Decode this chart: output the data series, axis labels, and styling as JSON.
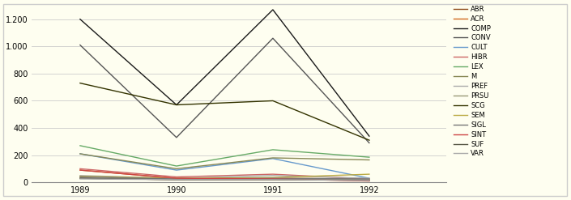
{
  "years": [
    1989,
    1990,
    1991,
    1992
  ],
  "series": {
    "ABR": [
      30,
      20,
      20,
      15
    ],
    "ACR": [
      90,
      30,
      30,
      25
    ],
    "COMP": [
      1200,
      570,
      1270,
      340
    ],
    "CONV": [
      1010,
      330,
      1060,
      290
    ],
    "CULT": [
      210,
      90,
      175,
      30
    ],
    "HIBR": [
      100,
      40,
      60,
      25
    ],
    "LEX": [
      270,
      120,
      240,
      185
    ],
    "M": [
      210,
      100,
      180,
      165
    ],
    "PREF": [
      50,
      30,
      50,
      30
    ],
    "PRSU": [
      30,
      20,
      25,
      20
    ],
    "SCG": [
      730,
      570,
      600,
      310
    ],
    "SEM": [
      45,
      30,
      35,
      60
    ],
    "SIGL": [
      40,
      25,
      30,
      25
    ],
    "SINT": [
      90,
      30,
      25,
      10
    ],
    "SUF": [
      30,
      20,
      20,
      15
    ],
    "VAR": [
      25,
      20,
      20,
      15
    ]
  },
  "colors": {
    "ABR": "#8B4513",
    "ACR": "#D2691E",
    "COMP": "#1a1a1a",
    "CONV": "#555555",
    "CULT": "#6699CC",
    "HIBR": "#CC6666",
    "LEX": "#66AA66",
    "M": "#888855",
    "PREF": "#AAAAAA",
    "PRSU": "#999977",
    "SCG": "#333300",
    "SEM": "#BBAA44",
    "SIGL": "#777777",
    "SINT": "#CC4444",
    "SUF": "#555544",
    "VAR": "#AAAAAA"
  },
  "background_color": "#FEFEF0",
  "plot_background": "#FEFEF0",
  "ylim": [
    0,
    1300
  ],
  "yticks": [
    0,
    200,
    400,
    600,
    800,
    1000,
    1200
  ],
  "figsize": [
    7.05,
    2.47
  ],
  "dpi": 100
}
